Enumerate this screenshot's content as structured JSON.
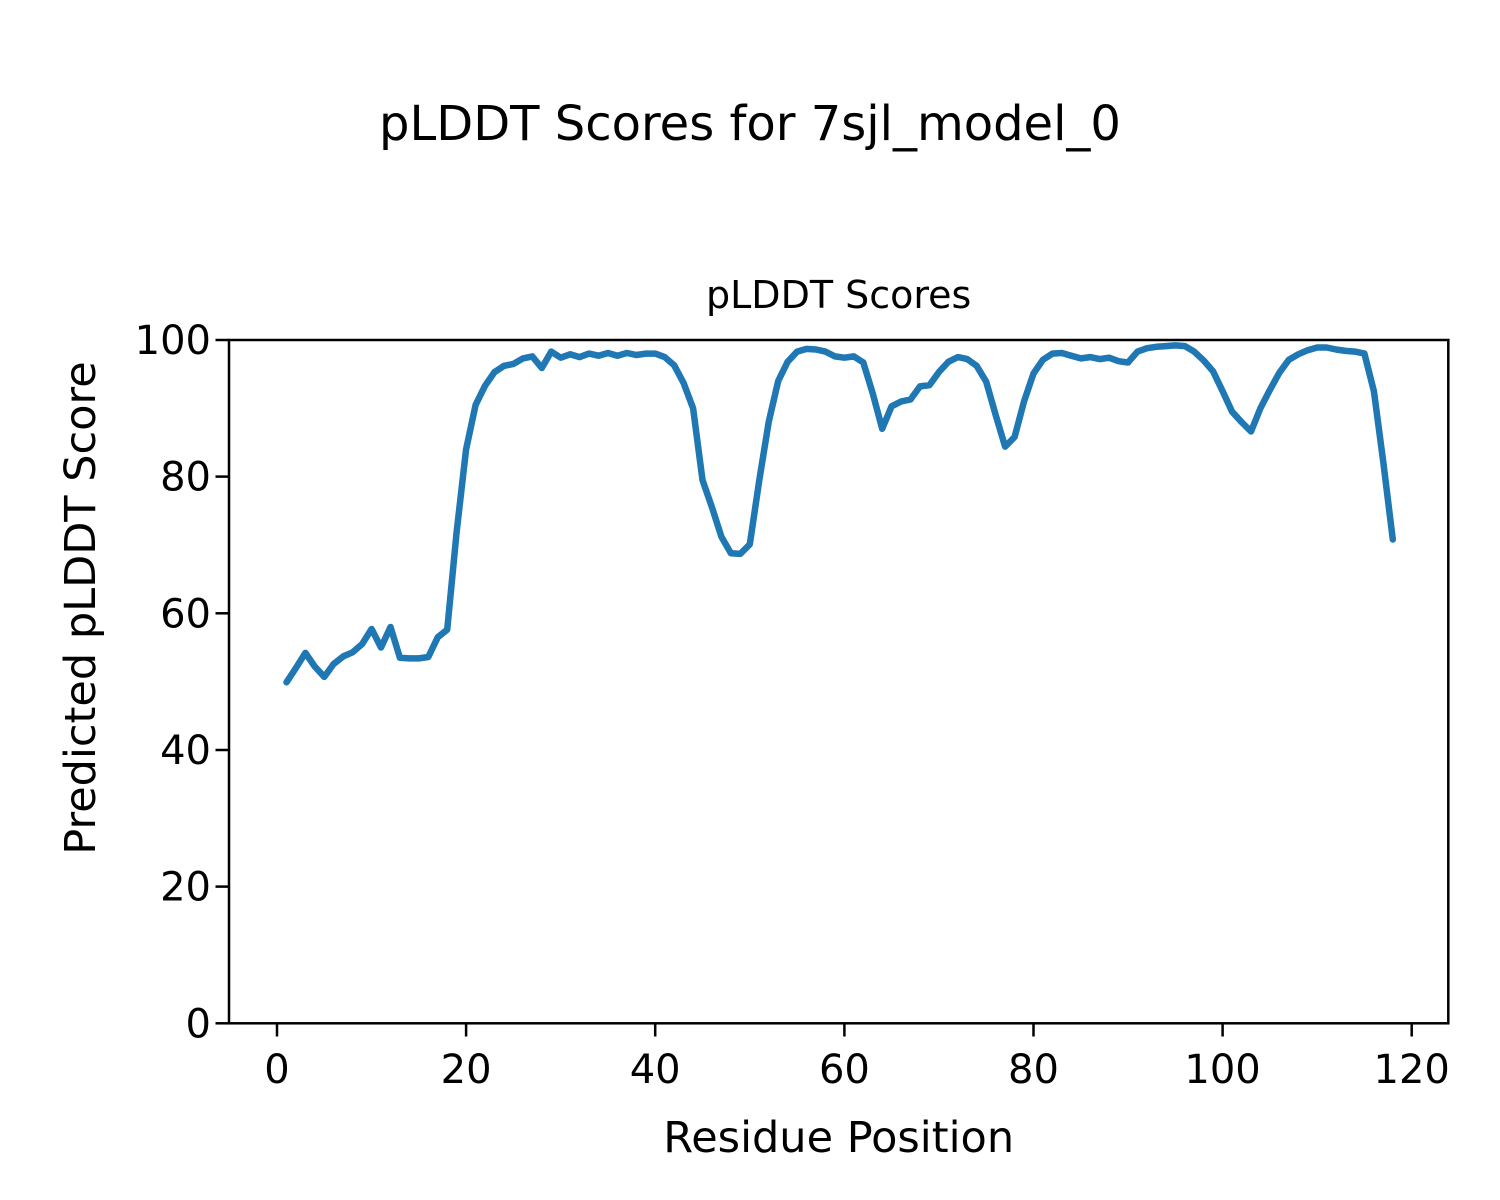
{
  "chart_data": {
    "type": "line",
    "suptitle": "pLDDT Scores for 7sjl_model_0",
    "title": "pLDDT Scores",
    "xlabel": "Residue Position",
    "ylabel": "Predicted pLDDT Score",
    "xlim": [
      -5.1,
      123.9
    ],
    "ylim": [
      0,
      100
    ],
    "xticks": [
      0,
      20,
      40,
      60,
      80,
      100,
      120
    ],
    "yticks": [
      0,
      20,
      40,
      60,
      80,
      100
    ],
    "grid": false,
    "legend": null,
    "line_color": "#1f77b4",
    "axes_color": "#000000",
    "background_color": "#ffffff",
    "series": [
      {
        "name": "pLDDT",
        "x": [
          1,
          2,
          3,
          4,
          5,
          6,
          7,
          8,
          9,
          10,
          11,
          12,
          13,
          14,
          15,
          16,
          17,
          18,
          19,
          20,
          21,
          22,
          23,
          24,
          25,
          26,
          27,
          28,
          29,
          30,
          31,
          32,
          33,
          34,
          35,
          36,
          37,
          38,
          39,
          40,
          41,
          42,
          43,
          44,
          45,
          46,
          47,
          48,
          49,
          50,
          51,
          52,
          53,
          54,
          55,
          56,
          57,
          58,
          59,
          60,
          61,
          62,
          63,
          64,
          65,
          66,
          67,
          68,
          69,
          70,
          71,
          72,
          73,
          74,
          75,
          76,
          77,
          78,
          79,
          80,
          81,
          82,
          83,
          84,
          85,
          86,
          87,
          88,
          89,
          90,
          91,
          92,
          93,
          94,
          95,
          96,
          97,
          98,
          99,
          100,
          101,
          102,
          103,
          104,
          105,
          106,
          107,
          108,
          109,
          110,
          111,
          112,
          113,
          114,
          115,
          116,
          117,
          118
        ],
        "y": [
          49.9,
          52.0,
          54.2,
          52.2,
          50.7,
          52.6,
          53.7,
          54.3,
          55.5,
          57.7,
          55.0,
          58.0,
          53.5,
          53.4,
          53.4,
          53.6,
          56.5,
          57.6,
          72.0,
          84.0,
          90.5,
          93.3,
          95.3,
          96.2,
          96.5,
          97.3,
          97.6,
          95.9,
          98.3,
          97.4,
          97.9,
          97.5,
          98.0,
          97.7,
          98.1,
          97.7,
          98.1,
          97.8,
          98.0,
          98.0,
          97.5,
          96.3,
          93.7,
          90.0,
          79.5,
          75.5,
          71.2,
          68.8,
          68.7,
          70.1,
          79.5,
          88.0,
          94.0,
          96.8,
          98.3,
          98.7,
          98.6,
          98.3,
          97.6,
          97.4,
          97.6,
          96.7,
          92.2,
          87.0,
          90.3,
          91.0,
          91.3,
          93.2,
          93.4,
          95.3,
          96.8,
          97.5,
          97.2,
          96.2,
          93.9,
          89.0,
          84.4,
          85.8,
          91.0,
          95.1,
          97.1,
          98.0,
          98.1,
          97.7,
          97.3,
          97.5,
          97.2,
          97.4,
          96.9,
          96.7,
          98.3,
          98.8,
          99.0,
          99.1,
          99.2,
          99.1,
          98.3,
          97.0,
          95.4,
          92.5,
          89.5,
          88.0,
          86.6,
          90.0,
          92.7,
          95.2,
          97.1,
          97.9,
          98.5,
          98.9,
          98.9,
          98.6,
          98.4,
          98.3,
          98.0,
          92.5,
          82.0,
          70.8
        ]
      }
    ]
  }
}
